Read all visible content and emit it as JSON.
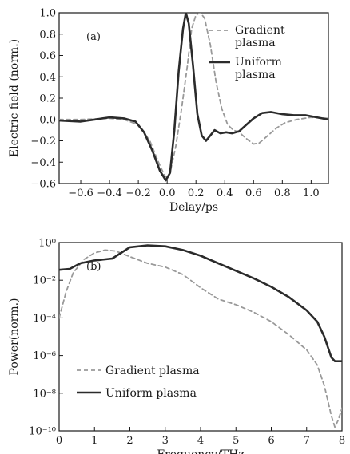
{
  "chart_data": [
    {
      "type": "line",
      "panel_label": "(a)",
      "xlabel": "Delay/ps",
      "ylabel": "Electric field (norm.)",
      "xlim": [
        -0.75,
        1.12
      ],
      "ylim": [
        -0.6,
        1.0
      ],
      "xticks": [
        -0.6,
        -0.4,
        -0.2,
        0.0,
        0.2,
        0.4,
        0.6,
        0.8,
        1.0
      ],
      "xtick_labels": [
        "−0.6",
        "−0.4",
        "−0.2",
        "0.0",
        "0.2",
        "0.4",
        "0.6",
        "0.8",
        "1.0"
      ],
      "yticks": [
        -0.6,
        -0.4,
        -0.2,
        0.0,
        0.2,
        0.4,
        0.6,
        0.8,
        1.0
      ],
      "ytick_labels": [
        "−0.6",
        "−0.4",
        "−0.2",
        "0.0",
        "0.2",
        "0.4",
        "0.6",
        "0.8",
        "1.0"
      ],
      "legend_position": "top-right",
      "series": [
        {
          "name": "Gradient plasma",
          "style": "dashed",
          "color": "#999999",
          "points": [
            [
              -0.75,
              0.0
            ],
            [
              -0.6,
              0.0
            ],
            [
              -0.4,
              0.01
            ],
            [
              -0.3,
              0.0
            ],
            [
              -0.2,
              -0.05
            ],
            [
              -0.12,
              -0.2
            ],
            [
              -0.06,
              -0.4
            ],
            [
              -0.02,
              -0.52
            ],
            [
              0.0,
              -0.55
            ],
            [
              0.02,
              -0.5
            ],
            [
              0.06,
              -0.25
            ],
            [
              0.1,
              0.1
            ],
            [
              0.14,
              0.5
            ],
            [
              0.17,
              0.85
            ],
            [
              0.2,
              0.98
            ],
            [
              0.23,
              1.0
            ],
            [
              0.26,
              0.95
            ],
            [
              0.3,
              0.7
            ],
            [
              0.34,
              0.35
            ],
            [
              0.38,
              0.1
            ],
            [
              0.42,
              -0.05
            ],
            [
              0.46,
              -0.1
            ],
            [
              0.5,
              -0.12
            ],
            [
              0.55,
              -0.18
            ],
            [
              0.6,
              -0.23
            ],
            [
              0.64,
              -0.22
            ],
            [
              0.7,
              -0.15
            ],
            [
              0.76,
              -0.08
            ],
            [
              0.82,
              -0.03
            ],
            [
              0.9,
              0.0
            ],
            [
              1.0,
              0.02
            ],
            [
              1.12,
              0.01
            ]
          ]
        },
        {
          "name": "Uniform plasma",
          "style": "solid",
          "color": "#2b2b2b",
          "points": [
            [
              -0.75,
              -0.01
            ],
            [
              -0.6,
              -0.02
            ],
            [
              -0.5,
              0.0
            ],
            [
              -0.4,
              0.02
            ],
            [
              -0.3,
              0.01
            ],
            [
              -0.22,
              -0.02
            ],
            [
              -0.16,
              -0.12
            ],
            [
              -0.1,
              -0.3
            ],
            [
              -0.05,
              -0.48
            ],
            [
              -0.01,
              -0.57
            ],
            [
              0.02,
              -0.5
            ],
            [
              0.05,
              -0.1
            ],
            [
              0.08,
              0.45
            ],
            [
              0.11,
              0.85
            ],
            [
              0.13,
              1.0
            ],
            [
              0.15,
              0.9
            ],
            [
              0.18,
              0.5
            ],
            [
              0.21,
              0.05
            ],
            [
              0.24,
              -0.15
            ],
            [
              0.27,
              -0.2
            ],
            [
              0.3,
              -0.15
            ],
            [
              0.33,
              -0.1
            ],
            [
              0.37,
              -0.13
            ],
            [
              0.41,
              -0.12
            ],
            [
              0.45,
              -0.13
            ],
            [
              0.5,
              -0.11
            ],
            [
              0.55,
              -0.05
            ],
            [
              0.6,
              0.01
            ],
            [
              0.66,
              0.06
            ],
            [
              0.72,
              0.07
            ],
            [
              0.8,
              0.05
            ],
            [
              0.88,
              0.04
            ],
            [
              0.96,
              0.04
            ],
            [
              1.04,
              0.02
            ],
            [
              1.12,
              0.0
            ]
          ]
        }
      ]
    },
    {
      "type": "line",
      "panel_label": "(b)",
      "xlabel": "Frequency/THz",
      "ylabel": "Power(norm.)",
      "xlim": [
        0,
        8
      ],
      "ylim": [
        -10,
        0
      ],
      "yscale": "log",
      "xticks": [
        0,
        1,
        2,
        3,
        4,
        5,
        6,
        7,
        8
      ],
      "xtick_labels": [
        "0",
        "1",
        "2",
        "3",
        "4",
        "5",
        "6",
        "7",
        "8"
      ],
      "yticks": [
        0,
        -2,
        -4,
        -6,
        -8,
        -10
      ],
      "ytick_labels": [
        "10⁰",
        "10⁻²",
        "10⁻⁴",
        "10⁻⁶",
        "10⁻⁸",
        "10⁻¹⁰"
      ],
      "legend_position": "bottom-left",
      "series": [
        {
          "name": "Gradient plasma",
          "style": "dashed",
          "color": "#999999",
          "points": [
            [
              0.0,
              -4.0
            ],
            [
              0.2,
              -2.6
            ],
            [
              0.4,
              -1.6
            ],
            [
              0.7,
              -0.9
            ],
            [
              1.0,
              -0.55
            ],
            [
              1.3,
              -0.4
            ],
            [
              1.6,
              -0.45
            ],
            [
              2.0,
              -0.75
            ],
            [
              2.5,
              -1.1
            ],
            [
              3.0,
              -1.3
            ],
            [
              3.5,
              -1.7
            ],
            [
              4.0,
              -2.4
            ],
            [
              4.5,
              -3.0
            ],
            [
              5.0,
              -3.3
            ],
            [
              5.5,
              -3.7
            ],
            [
              6.0,
              -4.2
            ],
            [
              6.5,
              -4.9
            ],
            [
              7.0,
              -5.7
            ],
            [
              7.3,
              -6.5
            ],
            [
              7.5,
              -7.6
            ],
            [
              7.7,
              -9.2
            ],
            [
              7.8,
              -9.8
            ],
            [
              7.9,
              -9.4
            ],
            [
              8.0,
              -8.8
            ]
          ]
        },
        {
          "name": "Uniform plasma",
          "style": "solid",
          "color": "#2b2b2b",
          "points": [
            [
              0.0,
              -1.45
            ],
            [
              0.3,
              -1.4
            ],
            [
              0.6,
              -1.1
            ],
            [
              1.0,
              -0.95
            ],
            [
              1.5,
              -0.85
            ],
            [
              2.0,
              -0.25
            ],
            [
              2.5,
              -0.15
            ],
            [
              3.0,
              -0.2
            ],
            [
              3.5,
              -0.4
            ],
            [
              4.0,
              -0.7
            ],
            [
              4.5,
              -1.1
            ],
            [
              5.0,
              -1.5
            ],
            [
              5.5,
              -1.9
            ],
            [
              6.0,
              -2.35
            ],
            [
              6.5,
              -2.9
            ],
            [
              7.0,
              -3.6
            ],
            [
              7.3,
              -4.2
            ],
            [
              7.5,
              -5.0
            ],
            [
              7.7,
              -6.1
            ],
            [
              7.8,
              -6.3
            ],
            [
              8.0,
              -6.3
            ]
          ]
        }
      ]
    }
  ]
}
